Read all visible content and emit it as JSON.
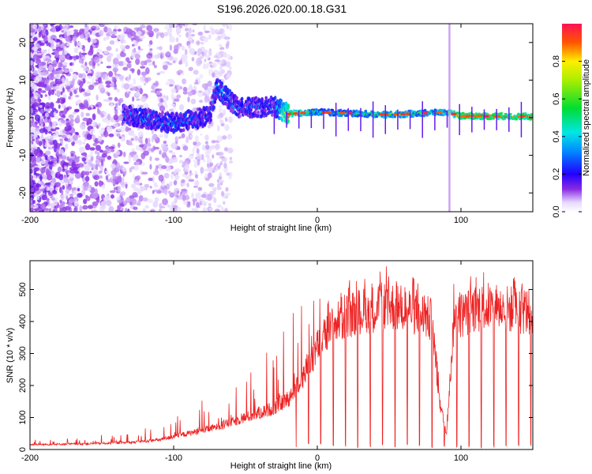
{
  "title": "S196.2026.020.00.18.G31",
  "chart_data": [
    {
      "type": "heatmap",
      "xlabel": "Height of straight line (km)",
      "ylabel": "Frequency (Hz)",
      "xlim": [
        -200,
        150
      ],
      "ylim": [
        -25,
        25
      ],
      "xticks": [
        -200,
        -100,
        0,
        100
      ],
      "xtick_labels": [
        "-200",
        "-100",
        "0",
        "100"
      ],
      "yticks": [
        -20,
        -10,
        0,
        10,
        20
      ],
      "ytick_labels": [
        "-20",
        "-10",
        "0",
        "10",
        "20"
      ],
      "colorbar": {
        "label": "Normalized spectral amplitude",
        "range": [
          0,
          1
        ],
        "ticks": [
          0.0,
          0.2,
          0.4,
          0.6,
          0.8
        ],
        "tick_labels": [
          "0.0",
          "0.2",
          "0.4",
          "0.6",
          "0.8"
        ]
      },
      "ridge": {
        "description_points": [
          {
            "x": -130,
            "f": 0.5,
            "amp": 0.3
          },
          {
            "x": -100,
            "f": -1.5,
            "amp": 0.35
          },
          {
            "x": -75,
            "f": 0.5,
            "amp": 0.3
          },
          {
            "x": -70,
            "f": 8,
            "amp": 0.35
          },
          {
            "x": -55,
            "f": 2.5,
            "amp": 0.3
          },
          {
            "x": -30,
            "f": 3,
            "amp": 0.3
          },
          {
            "x": -20,
            "f": 1,
            "amp": 0.9
          },
          {
            "x": 0,
            "f": 1.5,
            "amp": 0.5
          },
          {
            "x": 50,
            "f": 0.8,
            "amp": 0.6
          },
          {
            "x": 90,
            "f": 1.5,
            "amp": 0.6
          },
          {
            "x": 100,
            "f": 0.5,
            "amp": 0.9
          },
          {
            "x": 150,
            "f": 0.3,
            "amp": 0.9
          }
        ]
      }
    },
    {
      "type": "line",
      "xlabel": "Height of straight line (km)",
      "ylabel": "SNR (10 * v/v)",
      "xlim": [
        -200,
        150
      ],
      "ylim": [
        0,
        590
      ],
      "xticks": [
        -200,
        -100,
        0,
        100
      ],
      "xtick_labels": [
        "-200",
        "-100",
        "0",
        "100"
      ],
      "yticks": [
        0,
        100,
        200,
        300,
        400,
        500
      ],
      "ytick_labels": [
        "0",
        "100",
        "200",
        "300",
        "400",
        "500"
      ],
      "series": [
        {
          "name": "SNR",
          "color": "#ee2222",
          "envelope": {
            "x": [
              -200,
              -160,
              -130,
              -110,
              -90,
              -70,
              -50,
              -30,
              -20,
              -10,
              0,
              10,
              20,
              30,
              40,
              50,
              60,
              70,
              80,
              85,
              90,
              95,
              100,
              110,
              120,
              130,
              140,
              150
            ],
            "base": [
              15,
              18,
              22,
              30,
              50,
              70,
              100,
              130,
              160,
              230,
              320,
              380,
              420,
              430,
              440,
              450,
              440,
              430,
              400,
              150,
              50,
              400,
              420,
              440,
              445,
              440,
              435,
              430
            ],
            "peak": [
              30,
              40,
              60,
              80,
              130,
              190,
              290,
              380,
              420,
              470,
              500,
              510,
              530,
              550,
              560,
              580,
              560,
              540,
              500,
              200,
              100,
              560,
              570,
              560,
              555,
              550,
              540,
              560
            ]
          }
        }
      ]
    }
  ]
}
